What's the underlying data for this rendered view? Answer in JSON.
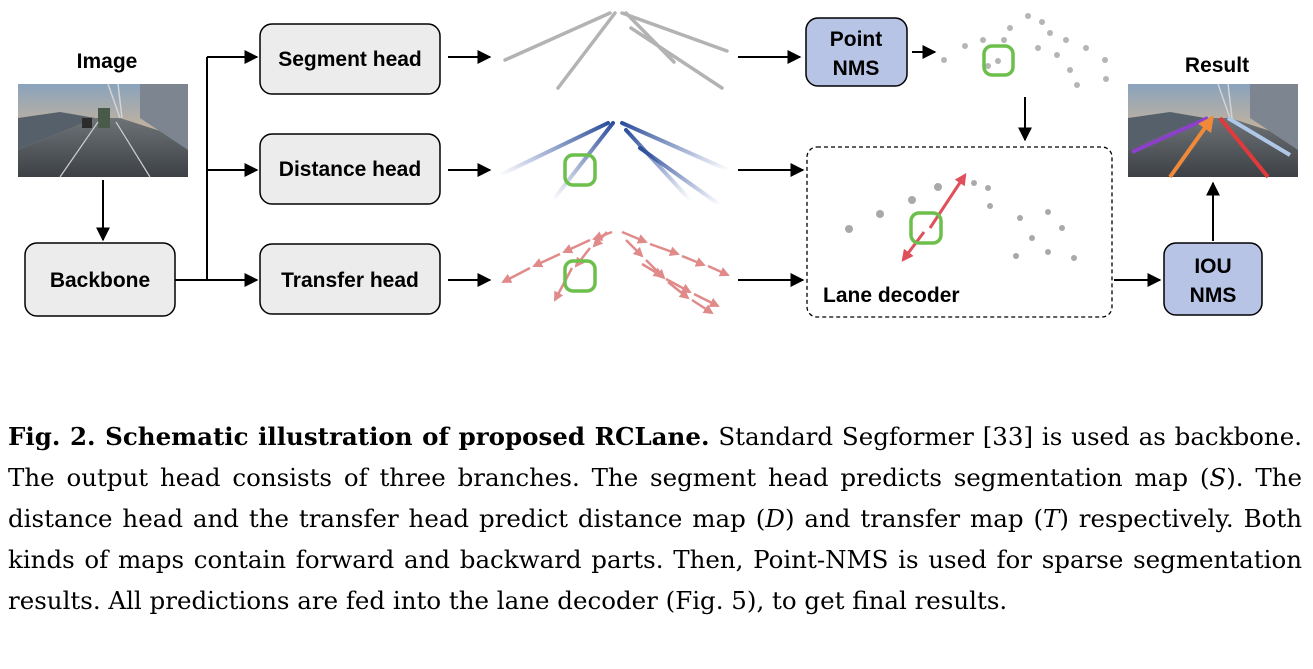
{
  "diagram": {
    "labels": {
      "image": "Image",
      "backbone": "Backbone",
      "segment_head": "Segment head",
      "distance_head": "Distance head",
      "transfer_head": "Transfer head",
      "point_nms_line1": "Point",
      "point_nms_line2": "NMS",
      "lane_decoder": "Lane decoder",
      "iou_nms_line1": "IOU",
      "iou_nms_line2": "NMS",
      "result": "Result"
    },
    "colors": {
      "box_gray": "#ececec",
      "box_blue": "#b7c4e6",
      "highlight_green": "#6cbf4a",
      "distance_blue": "#2e4f9c",
      "transfer_red": "#e08a8a",
      "segment_gray": "#b3b3b3"
    }
  },
  "caption": {
    "fig_label": "Fig. 2. Schematic illustration of proposed RCLane.",
    "text_1": " Standard Segformer [33] is used as backbone. The output head consists of three branches. The segment head predicts segmentation map (",
    "var_s": "S",
    "text_2": "). The distance head and the transfer head predict distance map (",
    "var_d": "D",
    "text_3": ") and transfer map (",
    "var_t": "T",
    "text_4": ") respectively. Both kinds of maps contain forward and backward parts. Then, Point-NMS is used for sparse segmentation results. All predictions are fed into the lane decoder (Fig. 5), to get final results."
  }
}
